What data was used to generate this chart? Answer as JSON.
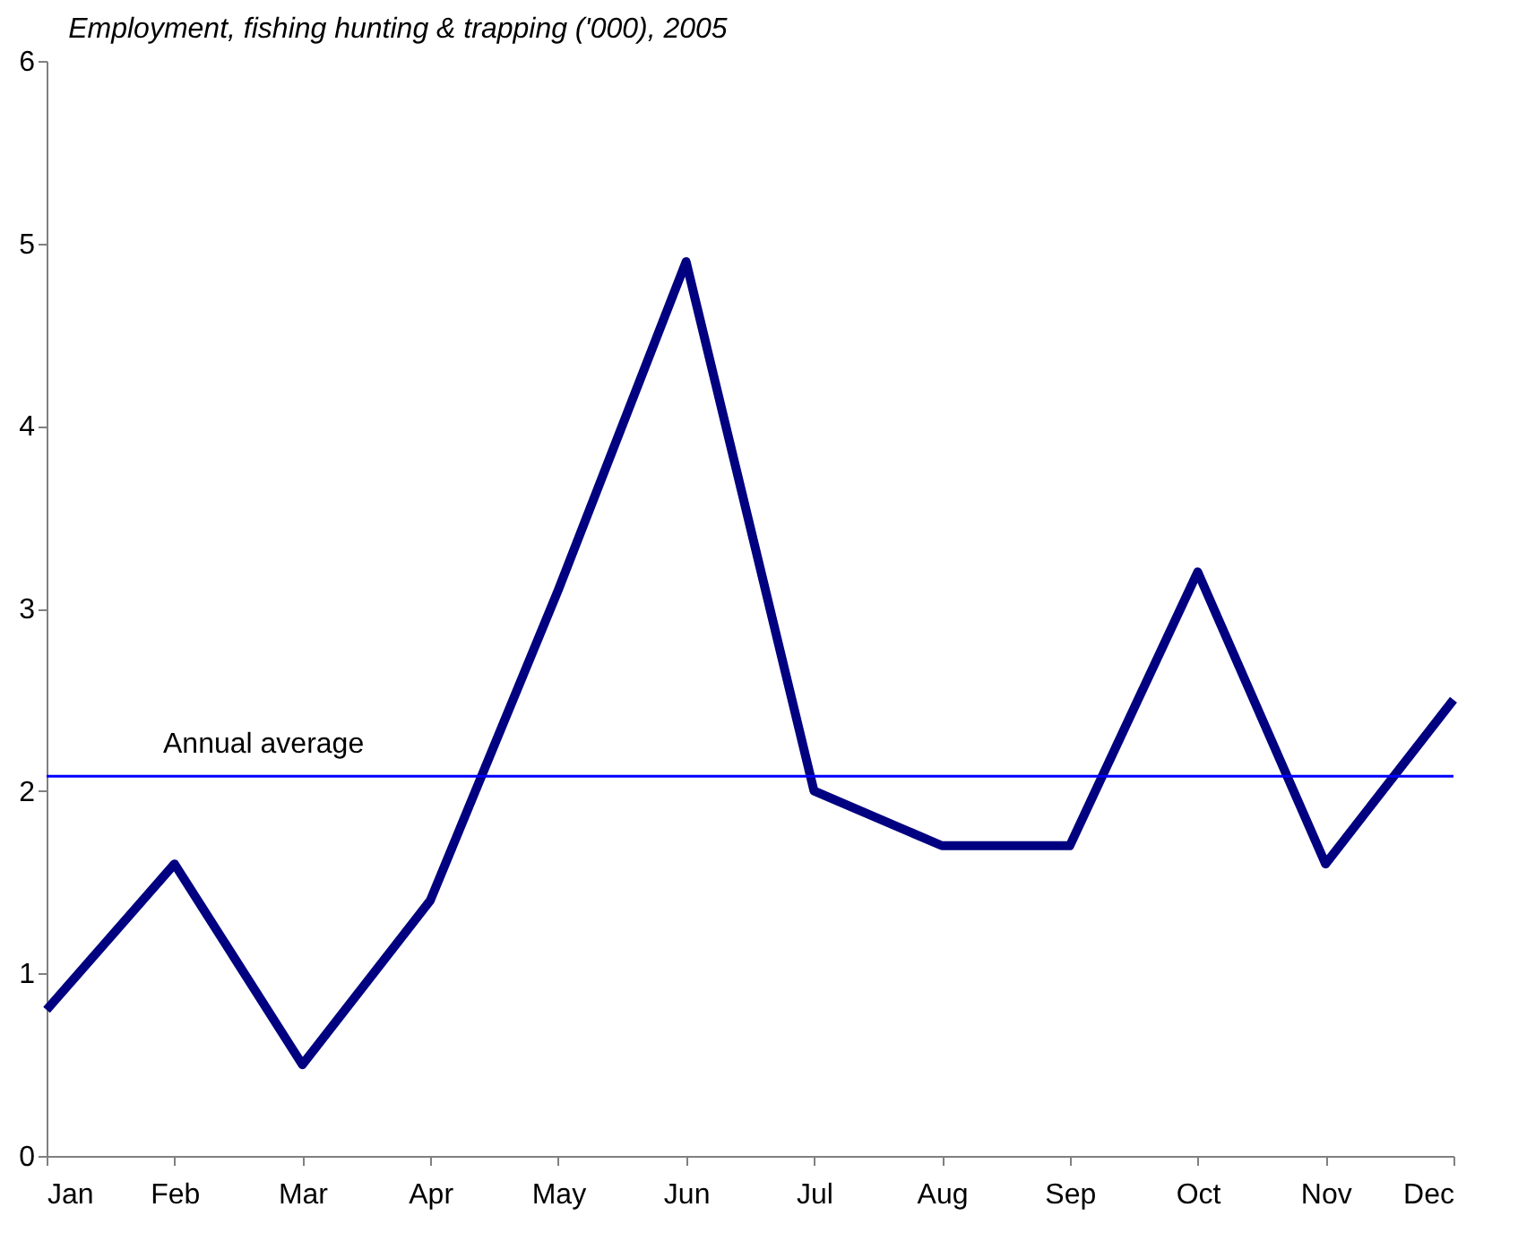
{
  "chart_data": {
    "type": "line",
    "title": "Employment, fishing hunting & trapping ('000), 2005",
    "categories": [
      "Jan",
      "Feb",
      "Mar",
      "Apr",
      "May",
      "Jun",
      "Jul",
      "Aug",
      "Sep",
      "Oct",
      "Nov",
      "Dec"
    ],
    "series": [
      {
        "color": "#000080",
        "values": [
          0.8,
          1.6,
          0.5,
          1.4,
          3.1,
          4.9,
          2.0,
          1.7,
          1.7,
          3.2,
          1.6,
          2.5
        ]
      }
    ],
    "ylim": [
      0,
      6
    ],
    "yticks": [
      0,
      1,
      2,
      3,
      4,
      5,
      6
    ],
    "grid": false,
    "marker": "none",
    "line_style": "solid",
    "ref_lines": [
      {
        "axis": "y",
        "value": 2.08,
        "label": "Annual average",
        "color": "#0000ff"
      }
    ]
  }
}
